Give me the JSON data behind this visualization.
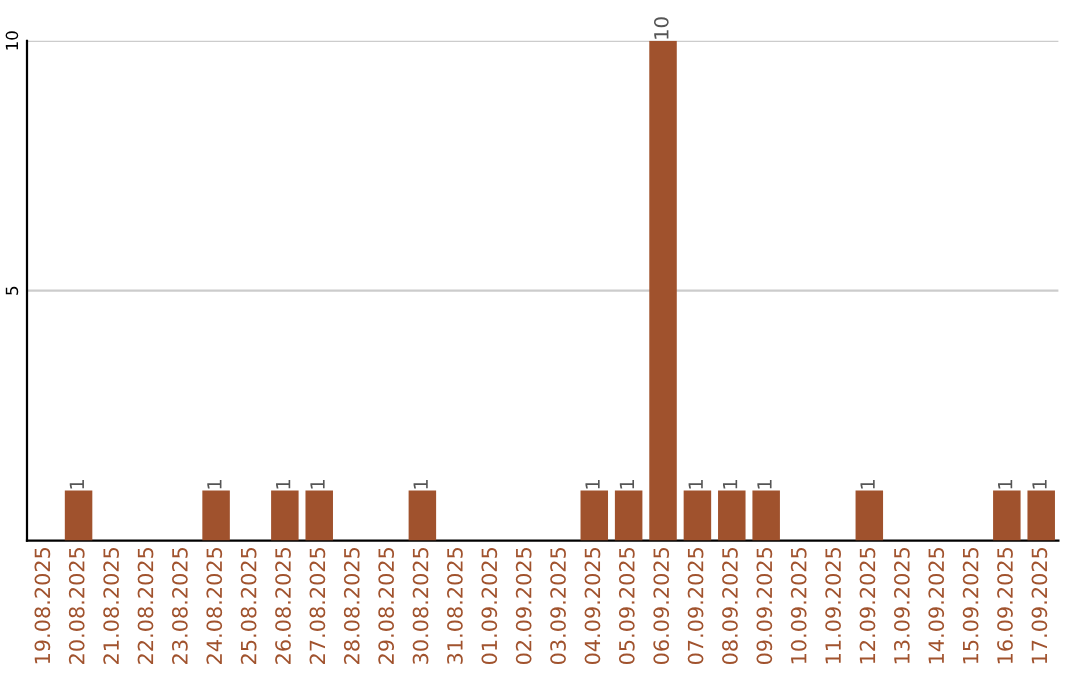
{
  "chart_data": {
    "type": "bar",
    "categories": [
      "19.08.2025",
      "20.08.2025",
      "21.08.2025",
      "22.08.2025",
      "23.08.2025",
      "24.08.2025",
      "25.08.2025",
      "26.08.2025",
      "27.08.2025",
      "28.08.2025",
      "29.08.2025",
      "30.08.2025",
      "31.08.2025",
      "01.09.2025",
      "02.09.2025",
      "03.09.2025",
      "04.09.2025",
      "05.09.2025",
      "06.09.2025",
      "07.09.2025",
      "08.09.2025",
      "09.09.2025",
      "10.09.2025",
      "11.09.2025",
      "12.09.2025",
      "13.09.2025",
      "14.09.2025",
      "15.09.2025",
      "16.09.2025",
      "17.09.2025"
    ],
    "values": [
      0,
      1,
      0,
      0,
      0,
      1,
      0,
      1,
      1,
      0,
      0,
      1,
      0,
      0,
      0,
      0,
      1,
      1,
      10,
      1,
      1,
      1,
      0,
      0,
      1,
      0,
      0,
      0,
      1,
      1
    ],
    "value_labels": [
      null,
      "1",
      null,
      null,
      null,
      "1",
      null,
      "1",
      "1",
      null,
      null,
      "1",
      null,
      null,
      null,
      null,
      "1",
      "1",
      "10",
      "1",
      "1",
      "1",
      null,
      null,
      "1",
      null,
      null,
      null,
      "1",
      "1"
    ],
    "color": "#a0522d",
    "ylim": [
      0,
      10
    ],
    "yticks": [
      5,
      10
    ],
    "grid": "y"
  }
}
